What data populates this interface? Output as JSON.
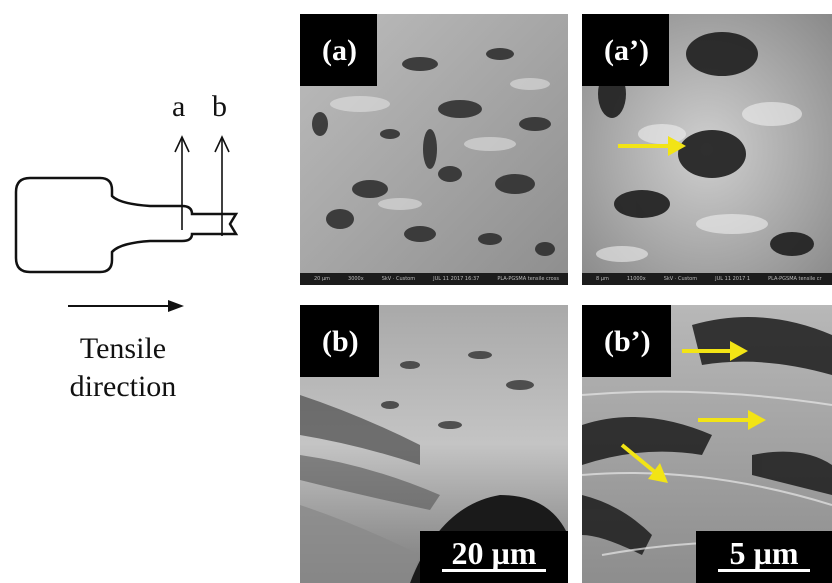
{
  "schematic": {
    "marks": [
      "a",
      "b"
    ],
    "direction_label_line1": "Tensile",
    "direction_label_line2": "direction"
  },
  "panels": [
    {
      "id": "a",
      "label": "(a)",
      "footer": [
        "20 µm",
        "3000x",
        "SkV · Custom",
        "JUL 11 2017 16:37",
        "PLA-PGSMA tensile cross"
      ]
    },
    {
      "id": "a_prime",
      "label": "(a’)",
      "footer": [
        "8 µm",
        "11000x",
        "SkV · Custom",
        "JUL 11 2017 1",
        "PLA-PGSMA tensile cr"
      ]
    },
    {
      "id": "b",
      "label": "(b)",
      "scale_bar": "20 µm"
    },
    {
      "id": "b_prime",
      "label": "(b’)",
      "scale_bar": "5 µm"
    }
  ],
  "colors": {
    "arrow": "#f2e415",
    "label_bg": "#000000",
    "label_text": "#ffffff"
  }
}
